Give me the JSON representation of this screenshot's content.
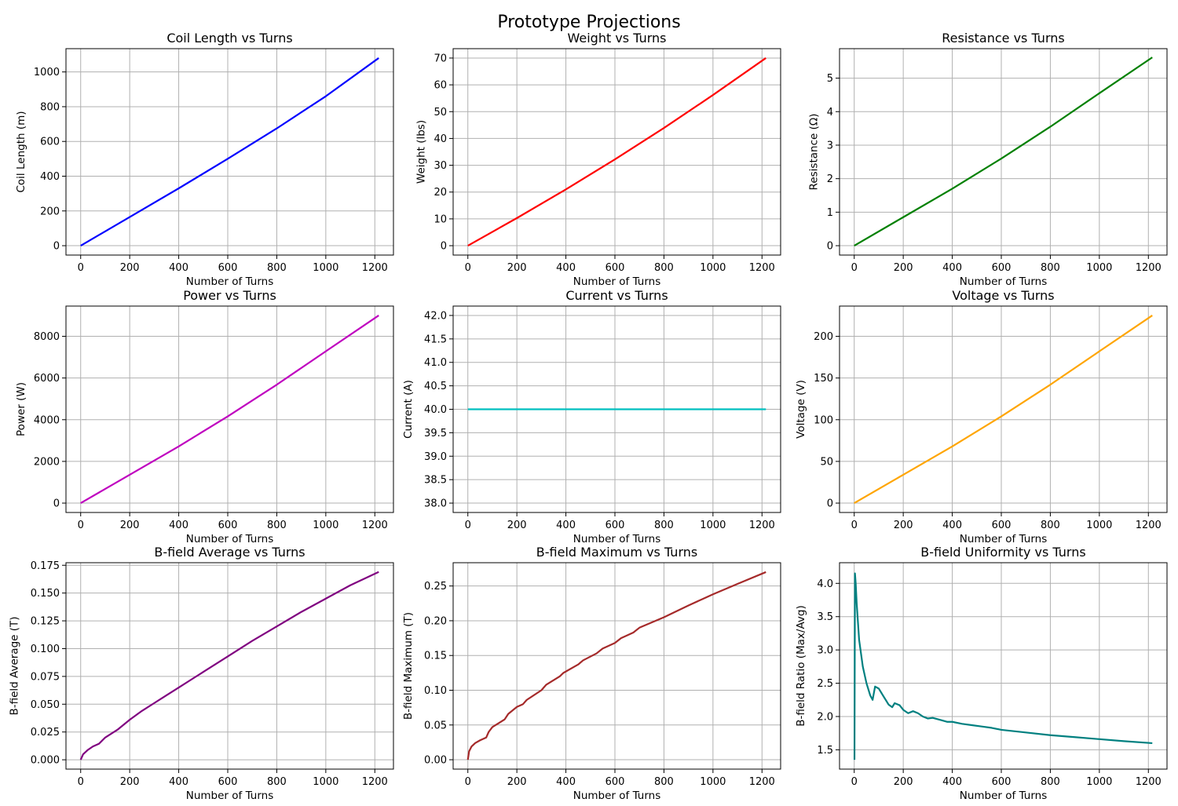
{
  "figure": {
    "suptitle": "Prototype Projections"
  },
  "chart_data": [
    {
      "id": "coil",
      "type": "line",
      "title": "Coil Length vs Turns",
      "xlabel": "Number of Turns",
      "ylabel": "Coil Length (m)",
      "color": "#0000ff",
      "xlim": [
        -60,
        1276
      ],
      "ylim": [
        -54,
        1134
      ],
      "xticks": [
        0,
        200,
        400,
        600,
        800,
        1000,
        1200
      ],
      "yticks": [
        0,
        200,
        400,
        600,
        800,
        1000
      ],
      "ytick_labels": [
        "0",
        "200",
        "400",
        "600",
        "800",
        "1000"
      ],
      "grid": true,
      "x": [
        0,
        200,
        400,
        600,
        800,
        1000,
        1216
      ],
      "y": [
        0,
        165,
        330,
        500,
        675,
        860,
        1080
      ]
    },
    {
      "id": "weight",
      "type": "line",
      "title": "Weight vs Turns",
      "xlabel": "Number of Turns",
      "ylabel": "Weight (lbs)",
      "color": "#ff0000",
      "xlim": [
        -60,
        1276
      ],
      "ylim": [
        -3.5,
        73.5
      ],
      "xticks": [
        0,
        200,
        400,
        600,
        800,
        1000,
        1200
      ],
      "yticks": [
        0,
        10,
        20,
        30,
        40,
        50,
        60,
        70
      ],
      "ytick_labels": [
        "0",
        "10",
        "20",
        "30",
        "40",
        "50",
        "60",
        "70"
      ],
      "grid": true,
      "x": [
        0,
        200,
        400,
        600,
        800,
        1000,
        1216
      ],
      "y": [
        0,
        10.3,
        21,
        32.2,
        43.9,
        56.2,
        70
      ]
    },
    {
      "id": "resistance",
      "type": "line",
      "title": "Resistance vs Turns",
      "xlabel": "Number of Turns",
      "ylabel": "Resistance (Ω)",
      "color": "#008000",
      "xlim": [
        -60,
        1276
      ],
      "ylim": [
        -0.28,
        5.88
      ],
      "xticks": [
        0,
        200,
        400,
        600,
        800,
        1000,
        1200
      ],
      "yticks": [
        0,
        1,
        2,
        3,
        4,
        5
      ],
      "ytick_labels": [
        "0",
        "1",
        "2",
        "3",
        "4",
        "5"
      ],
      "grid": true,
      "x": [
        0,
        200,
        400,
        600,
        800,
        1000,
        1216
      ],
      "y": [
        0,
        0.85,
        1.7,
        2.6,
        3.55,
        4.55,
        5.62
      ]
    },
    {
      "id": "power",
      "type": "line",
      "title": "Power vs Turns",
      "xlabel": "Number of Turns",
      "ylabel": "Power (W)",
      "color": "#bf00bf",
      "xlim": [
        -60,
        1276
      ],
      "ylim": [
        -450,
        9450
      ],
      "xticks": [
        0,
        200,
        400,
        600,
        800,
        1000,
        1200
      ],
      "yticks": [
        0,
        2000,
        4000,
        6000,
        8000
      ],
      "ytick_labels": [
        "0",
        "2000",
        "4000",
        "6000",
        "8000"
      ],
      "grid": true,
      "x": [
        0,
        200,
        400,
        600,
        800,
        1000,
        1216
      ],
      "y": [
        0,
        1360,
        2720,
        4160,
        5680,
        7280,
        9000
      ]
    },
    {
      "id": "current",
      "type": "line",
      "title": "Current vs Turns",
      "xlabel": "Number of Turns",
      "ylabel": "Current (A)",
      "color": "#00bfbf",
      "xlim": [
        -60,
        1276
      ],
      "ylim": [
        37.8,
        42.2
      ],
      "xticks": [
        0,
        200,
        400,
        600,
        800,
        1000,
        1200
      ],
      "yticks": [
        38,
        38.5,
        39,
        39.5,
        40,
        40.5,
        41,
        41.5,
        42
      ],
      "ytick_labels": [
        "38.0",
        "38.5",
        "39.0",
        "39.5",
        "40.0",
        "40.5",
        "41.0",
        "41.5",
        "42.0"
      ],
      "grid": true,
      "x": [
        0,
        1216
      ],
      "y": [
        40,
        40
      ]
    },
    {
      "id": "voltage",
      "type": "line",
      "title": "Voltage vs Turns",
      "xlabel": "Number of Turns",
      "ylabel": "Voltage (V)",
      "color": "#ffa500",
      "xlim": [
        -60,
        1276
      ],
      "ylim": [
        -11.25,
        236.25
      ],
      "xticks": [
        0,
        200,
        400,
        600,
        800,
        1000,
        1200
      ],
      "yticks": [
        0,
        50,
        100,
        150,
        200
      ],
      "ytick_labels": [
        "0",
        "50",
        "100",
        "150",
        "200"
      ],
      "grid": true,
      "x": [
        0,
        200,
        400,
        600,
        800,
        1000,
        1216
      ],
      "y": [
        0,
        34,
        68,
        104,
        142,
        182,
        225
      ]
    },
    {
      "id": "bavg",
      "type": "line",
      "title": "B-field Average vs Turns",
      "xlabel": "Number of Turns",
      "ylabel": "B-field Average (T)",
      "color": "#800080",
      "xlim": [
        -60,
        1276
      ],
      "ylim": [
        -0.0084,
        0.1773
      ],
      "xticks": [
        0,
        200,
        400,
        600,
        800,
        1000,
        1200
      ],
      "yticks": [
        0,
        0.025,
        0.05,
        0.075,
        0.1,
        0.125,
        0.15,
        0.175
      ],
      "ytick_labels": [
        "0.000",
        "0.025",
        "0.050",
        "0.075",
        "0.100",
        "0.125",
        "0.150",
        "0.175"
      ],
      "grid": true,
      "x": [
        0,
        10,
        30,
        50,
        75,
        100,
        150,
        200,
        250,
        300,
        350,
        400,
        450,
        500,
        600,
        700,
        800,
        900,
        1000,
        1100,
        1216
      ],
      "y": [
        0,
        0.005,
        0.009,
        0.012,
        0.0145,
        0.02,
        0.027,
        0.036,
        0.044,
        0.051,
        0.058,
        0.065,
        0.072,
        0.079,
        0.093,
        0.107,
        0.12,
        0.133,
        0.145,
        0.157,
        0.169
      ]
    },
    {
      "id": "bmax",
      "type": "line",
      "title": "B-field Maximum vs Turns",
      "xlabel": "Number of Turns",
      "ylabel": "B-field Maximum (T)",
      "color": "#a52a2a",
      "xlim": [
        -60,
        1276
      ],
      "ylim": [
        -0.0135,
        0.2835
      ],
      "xticks": [
        0,
        200,
        400,
        600,
        800,
        1000,
        1200
      ],
      "yticks": [
        0,
        0.05,
        0.1,
        0.15,
        0.2,
        0.25
      ],
      "ytick_labels": [
        "0.00",
        "0.05",
        "0.10",
        "0.15",
        "0.20",
        "0.25"
      ],
      "grid": true,
      "x": [
        0,
        5,
        15,
        30,
        50,
        75,
        85,
        100,
        150,
        165,
        200,
        225,
        240,
        300,
        320,
        375,
        390,
        450,
        470,
        525,
        550,
        600,
        625,
        675,
        700,
        800,
        900,
        1000,
        1100,
        1216
      ],
      "y": [
        0,
        0.012,
        0.019,
        0.024,
        0.028,
        0.032,
        0.04,
        0.047,
        0.058,
        0.066,
        0.076,
        0.08,
        0.086,
        0.1,
        0.108,
        0.12,
        0.125,
        0.137,
        0.143,
        0.153,
        0.16,
        0.168,
        0.175,
        0.183,
        0.19,
        0.205,
        0.222,
        0.238,
        0.253,
        0.27
      ]
    },
    {
      "id": "bratio",
      "type": "line",
      "title": "B-field Uniformity vs Turns",
      "xlabel": "Number of Turns",
      "ylabel": "B-field Ratio (Max/Avg)",
      "color": "#008080",
      "xlim": [
        -60,
        1276
      ],
      "ylim": [
        1.21,
        4.31
      ],
      "xticks": [
        0,
        200,
        400,
        600,
        800,
        1000,
        1200
      ],
      "yticks": [
        1.5,
        2,
        2.5,
        3,
        3.5,
        4
      ],
      "ytick_labels": [
        "1.5",
        "2.0",
        "2.5",
        "3.0",
        "3.5",
        "4.0"
      ],
      "grid": true,
      "x": [
        1,
        3,
        6,
        10,
        20,
        35,
        50,
        65,
        75,
        85,
        100,
        120,
        140,
        155,
        165,
        185,
        200,
        220,
        240,
        260,
        280,
        300,
        320,
        350,
        380,
        400,
        440,
        480,
        520,
        560,
        600,
        700,
        800,
        900,
        1000,
        1100,
        1216
      ],
      "y": [
        1.35,
        4.15,
        4.0,
        3.7,
        3.15,
        2.75,
        2.5,
        2.32,
        2.25,
        2.45,
        2.42,
        2.3,
        2.18,
        2.14,
        2.2,
        2.17,
        2.1,
        2.05,
        2.08,
        2.05,
        2.0,
        1.97,
        1.98,
        1.95,
        1.92,
        1.92,
        1.89,
        1.87,
        1.85,
        1.83,
        1.8,
        1.76,
        1.72,
        1.69,
        1.66,
        1.63,
        1.6
      ]
    }
  ]
}
